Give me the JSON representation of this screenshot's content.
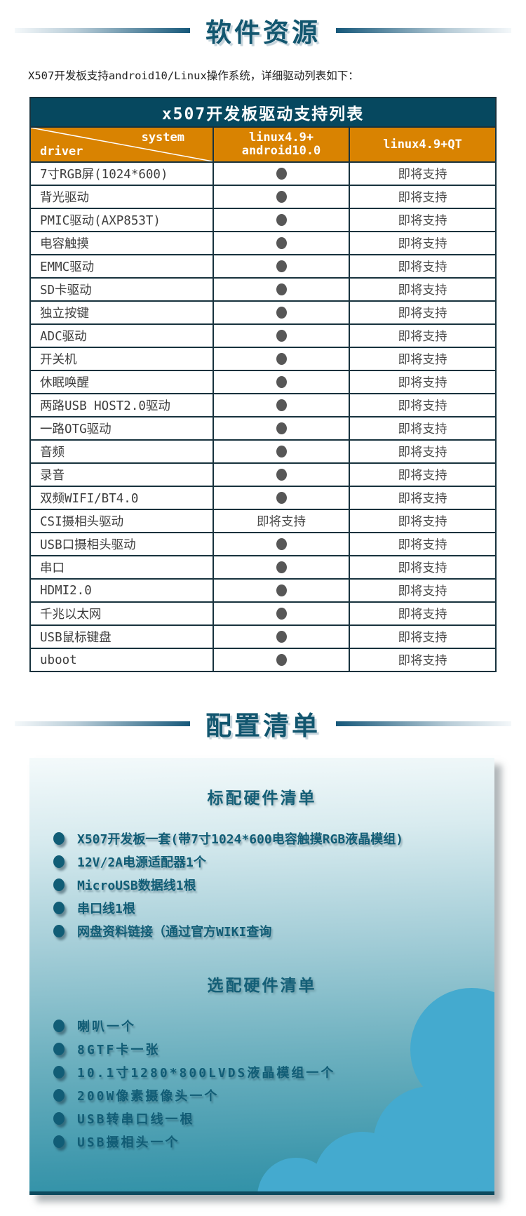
{
  "page": {
    "section1_title": "软件资源",
    "intro": "X507开发板支持android10/Linux操作系统，详细驱动列表如下：",
    "section2_title": "配置清单"
  },
  "table": {
    "caption": "x507开发板驱动支持列表",
    "header": {
      "corner_top": "system",
      "corner_bottom": "driver",
      "android_line1": "linux4.9+",
      "android_line2": "android10.0",
      "qt": "linux4.9+QT"
    },
    "supported_symbol": "●",
    "rows": [
      {
        "driver": "7寸RGB屏(1024*600)",
        "android": "●",
        "qt": "即将支持"
      },
      {
        "driver": "背光驱动",
        "android": "●",
        "qt": "即将支持"
      },
      {
        "driver": "PMIC驱动(AXP853T)",
        "android": "●",
        "qt": "即将支持"
      },
      {
        "driver": "电容触摸",
        "android": "●",
        "qt": "即将支持"
      },
      {
        "driver": "EMMC驱动",
        "android": "●",
        "qt": "即将支持"
      },
      {
        "driver": "SD卡驱动",
        "android": "●",
        "qt": "即将支持"
      },
      {
        "driver": "独立按键",
        "android": "●",
        "qt": "即将支持"
      },
      {
        "driver": "ADC驱动",
        "android": "●",
        "qt": "即将支持"
      },
      {
        "driver": "开关机",
        "android": "●",
        "qt": "即将支持"
      },
      {
        "driver": "休眠唤醒",
        "android": "●",
        "qt": "即将支持"
      },
      {
        "driver": "两路USB HOST2.0驱动",
        "android": "●",
        "qt": "即将支持"
      },
      {
        "driver": "一路OTG驱动",
        "android": "●",
        "qt": "即将支持"
      },
      {
        "driver": "音频",
        "android": "●",
        "qt": "即将支持"
      },
      {
        "driver": "录音",
        "android": "●",
        "qt": "即将支持"
      },
      {
        "driver": "双频WIFI/BT4.0",
        "android": "●",
        "qt": "即将支持"
      },
      {
        "driver": "CSI摄相头驱动",
        "android": "即将支持",
        "qt": "即将支持"
      },
      {
        "driver": "USB口摄相头驱动",
        "android": "●",
        "qt": "即将支持"
      },
      {
        "driver": "串口",
        "android": "●",
        "qt": "即将支持"
      },
      {
        "driver": "HDMI2.0",
        "android": "●",
        "qt": "即将支持"
      },
      {
        "driver": "千兆以太网",
        "android": "●",
        "qt": "即将支持"
      },
      {
        "driver": "USB鼠标键盘",
        "android": "●",
        "qt": "即将支持"
      },
      {
        "driver": "uboot",
        "android": "●",
        "qt": "即将支持"
      }
    ]
  },
  "checklist": {
    "standard": {
      "heading": "标配硬件清单",
      "items": [
        "X507开发板一套(带7寸1024*600电容触摸RGB液晶模组)",
        "12V/2A电源适配器1个",
        "MicroUSB数据线1根",
        "串口线1根",
        "网盘资料链接（通过官方WIKI查询"
      ]
    },
    "optional": {
      "heading": "选配硬件清单",
      "items": [
        "喇叭一个",
        "8GTF卡一张",
        "10.1寸1280*800LVDS液晶模组一个",
        "200W像素摄像头一个",
        "USB转串口线一根",
        "USB摄相头一个"
      ]
    }
  },
  "colors": {
    "table_header_bg": "#06485f",
    "table_subheader_bg": "#d98301",
    "section_title": "#12566f",
    "panel_text": "#115d76",
    "cloud_blue": "#44aacf",
    "dot_gray": "#575757",
    "border_dark": "#17323d"
  }
}
